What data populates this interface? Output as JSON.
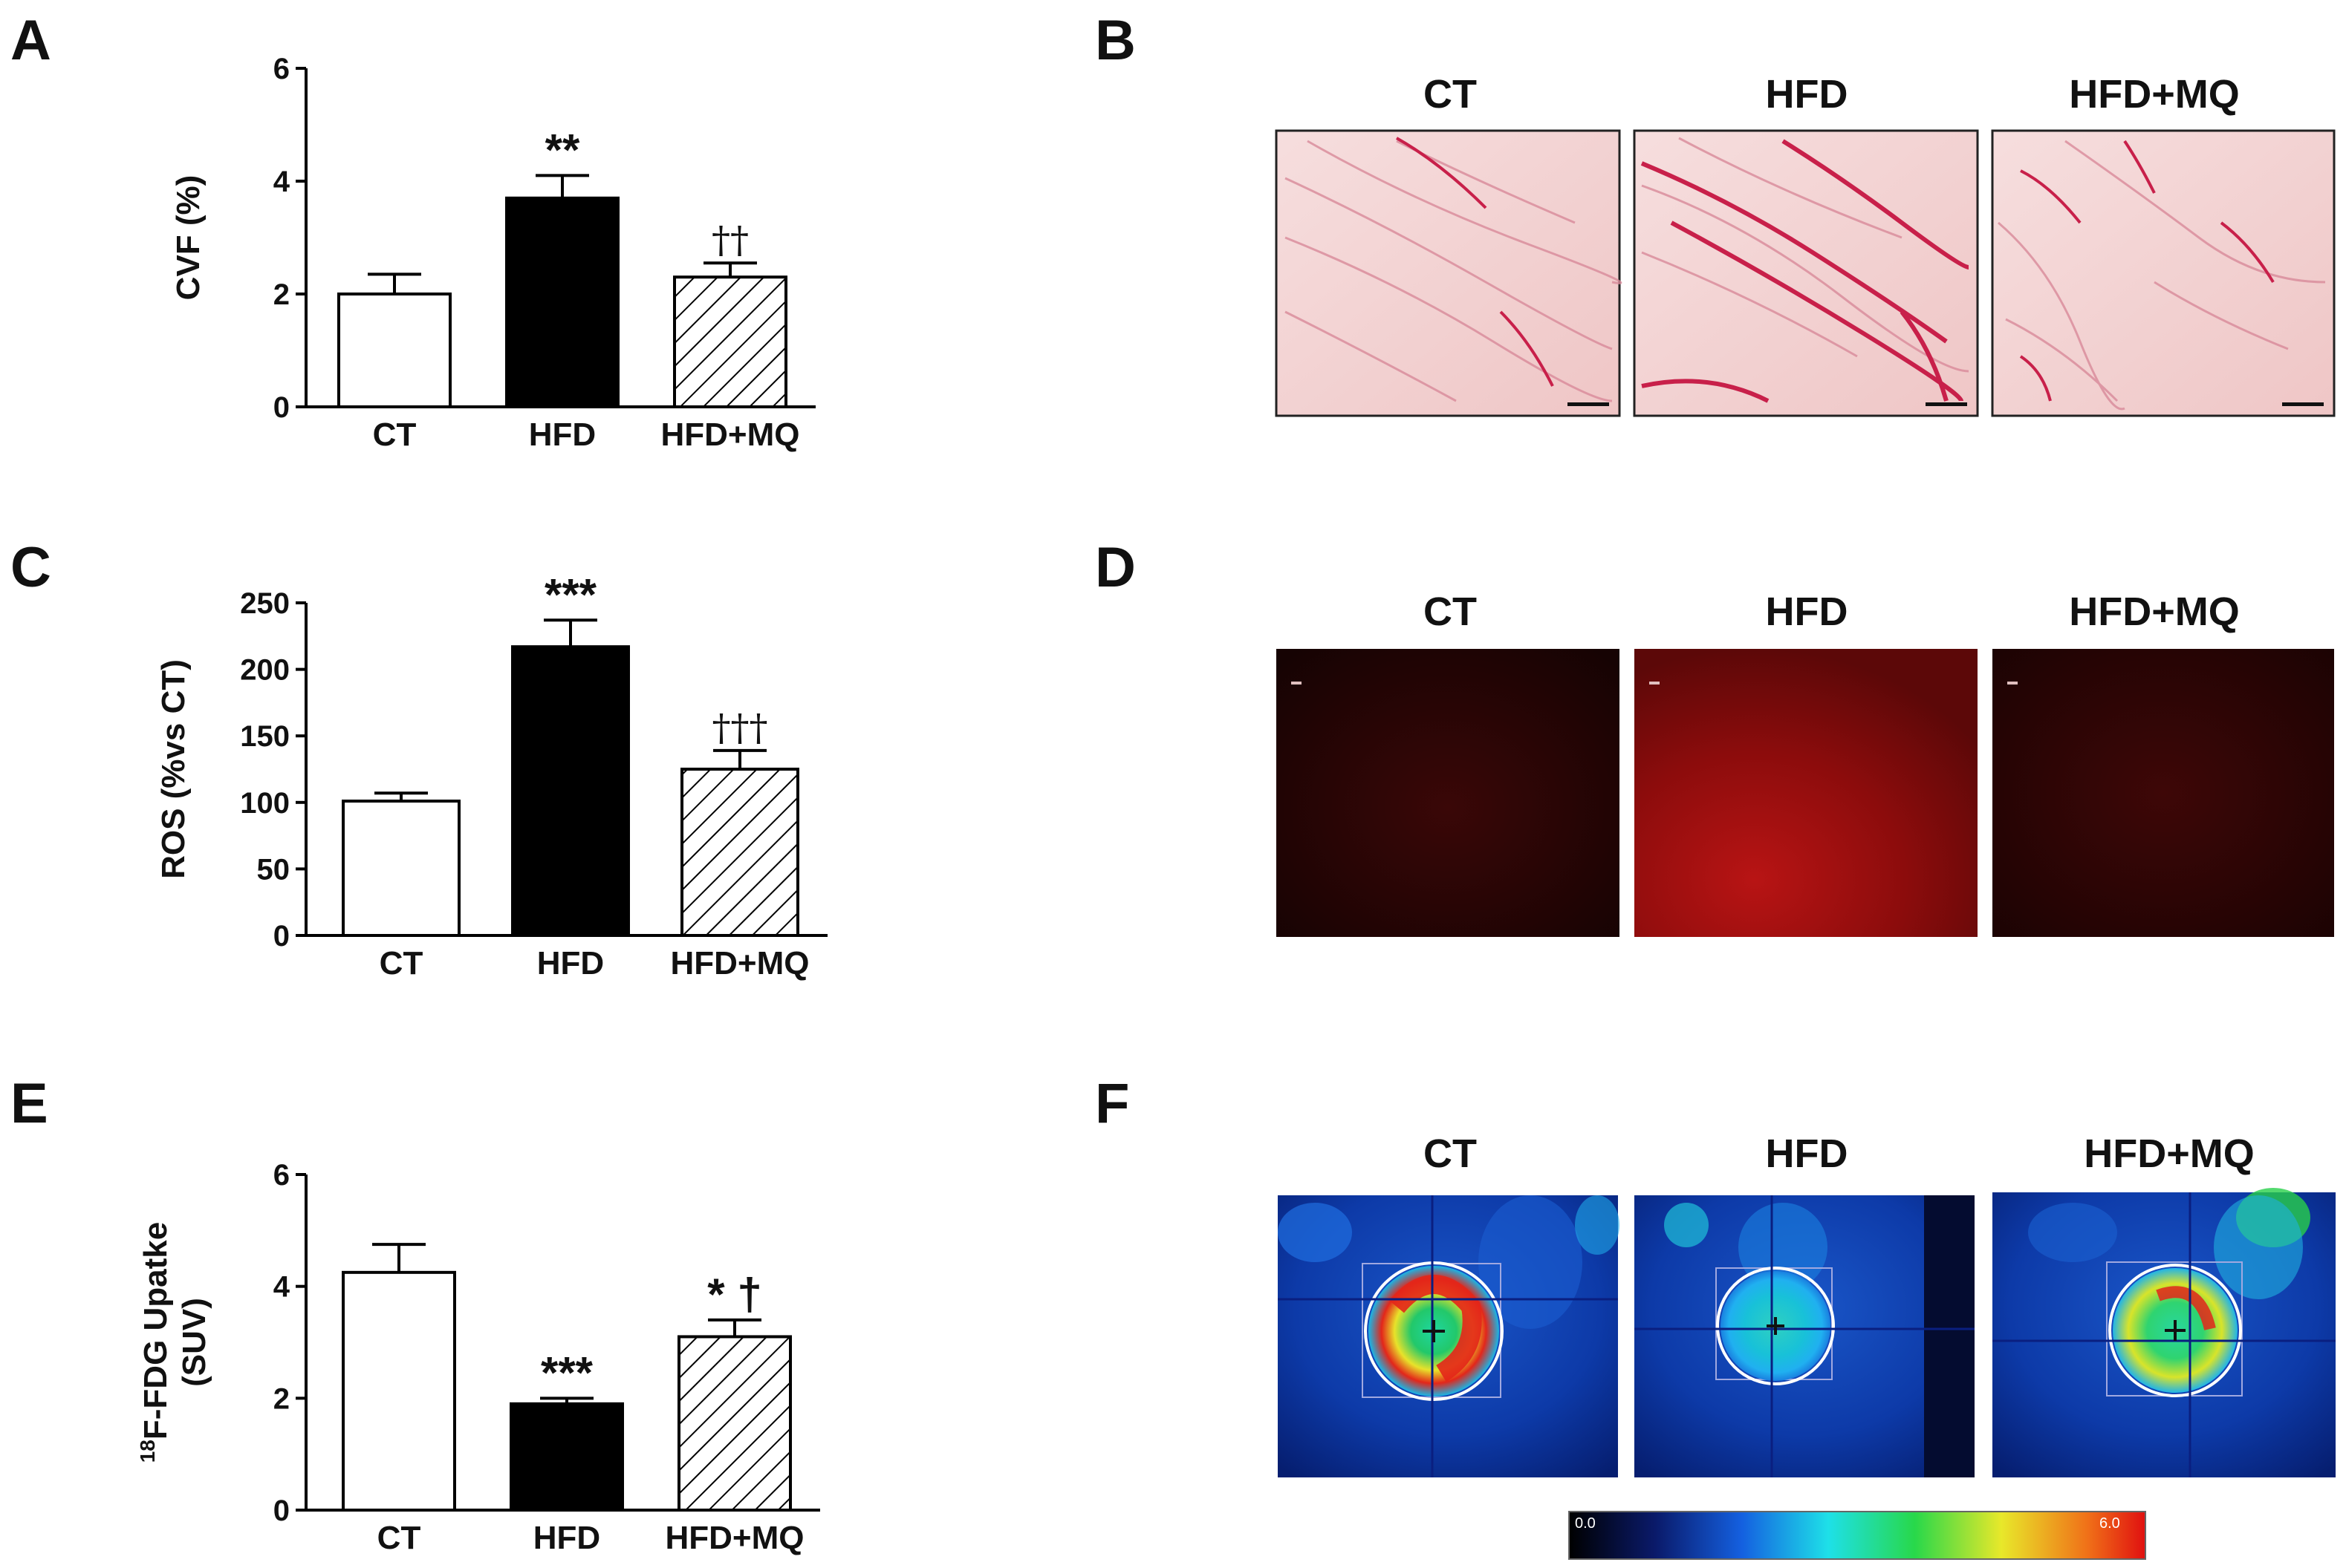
{
  "panels": {
    "a": {
      "letter": "A"
    },
    "b": {
      "letter": "B"
    },
    "c": {
      "letter": "C"
    },
    "d": {
      "letter": "D"
    },
    "e": {
      "letter": "E"
    },
    "f": {
      "letter": "F"
    }
  },
  "image_titles": {
    "b": [
      "CT",
      "HFD",
      "HFD+MQ"
    ],
    "d": [
      "CT",
      "HFD",
      "HFD+MQ"
    ],
    "f": [
      "CT",
      "HFD",
      "HFD+MQ"
    ]
  },
  "colorbar": {
    "min_label": "0.0",
    "max_label": "6.0"
  },
  "colors": {
    "bar_hfd": "#000000",
    "bar_ct": "#ffffff",
    "axis": "#000000",
    "stain_pink": "#f4d0d0",
    "stain_red": "#c8204a",
    "ros_dark": "#1a0404",
    "ros_red": "#a01010",
    "pet_blue": "#0c2a9a"
  },
  "chart_data": [
    {
      "type": "bar",
      "panel": "A",
      "categories": [
        "CT",
        "HFD",
        "HFD+MQ"
      ],
      "values": [
        2.0,
        3.7,
        2.3
      ],
      "errors": [
        0.35,
        0.4,
        0.25
      ],
      "fills": [
        "white",
        "black",
        "hatched"
      ],
      "significance": [
        "",
        "**",
        "††"
      ],
      "ylabel": "CVF (%)",
      "ylim": [
        0,
        6
      ],
      "yticks": [
        "0",
        "2",
        "4",
        "6"
      ]
    },
    {
      "type": "bar",
      "panel": "C",
      "categories": [
        "CT",
        "HFD",
        "HFD+MQ"
      ],
      "values": [
        101,
        217,
        125
      ],
      "errors": [
        6,
        20,
        14
      ],
      "fills": [
        "white",
        "black",
        "hatched"
      ],
      "significance": [
        "",
        "***",
        "†††"
      ],
      "ylabel": "ROS (%vs CT)",
      "ylim": [
        0,
        250
      ],
      "yticks": [
        "0",
        "50",
        "100",
        "150",
        "200",
        "250"
      ]
    },
    {
      "type": "bar",
      "panel": "E",
      "categories": [
        "CT",
        "HFD",
        "HFD+MQ"
      ],
      "values": [
        4.25,
        1.9,
        3.1
      ],
      "errors": [
        0.5,
        0.1,
        0.3
      ],
      "fills": [
        "white",
        "black",
        "hatched"
      ],
      "significance": [
        "",
        "***",
        "* †"
      ],
      "ylabel_sup": "18",
      "ylabel_line1": "F-FDG Upatke",
      "ylabel_line2": "(SUV)",
      "ylim": [
        0,
        6
      ],
      "yticks": [
        "0",
        "2",
        "4",
        "6"
      ]
    }
  ]
}
